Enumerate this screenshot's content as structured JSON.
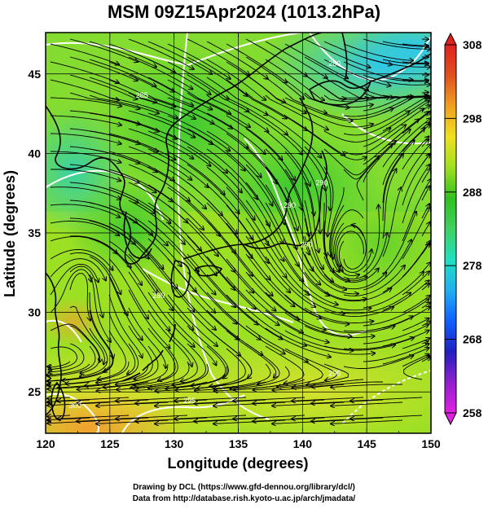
{
  "title": "MSM 09Z15Apr2024 (1013.2hPa)",
  "axes": {
    "xlabel": "Longitude (degrees)",
    "ylabel": "Latitude  (degrees)",
    "x_ticks": [
      120,
      125,
      130,
      135,
      140,
      145,
      150
    ],
    "y_ticks": [
      25,
      30,
      35,
      40,
      45
    ],
    "x_range": [
      120,
      150
    ],
    "y_range": [
      22.4,
      47.6
    ]
  },
  "colorbar": {
    "ticks": [
      258,
      268,
      278,
      288,
      298,
      308
    ],
    "range": [
      258,
      308
    ],
    "colors": [
      "#e020e0",
      "#9020d0",
      "#2020c0",
      "#1060ff",
      "#20b0f0",
      "#20e0c0",
      "#40d060",
      "#30c020",
      "#a0e020",
      "#f0e020",
      "#f0a020",
      "#e05020",
      "#e02020"
    ]
  },
  "contour_labels": [
    {
      "text": "285",
      "lon": 127.5,
      "lat": 43.5
    },
    {
      "text": "290",
      "lon": 141.5,
      "lat": 38.0
    },
    {
      "text": "290",
      "lon": 139.0,
      "lat": 36.6
    },
    {
      "text": "290",
      "lon": 140.3,
      "lat": 34.1
    },
    {
      "text": "290",
      "lon": 128.8,
      "lat": 30.9
    },
    {
      "text": "295",
      "lon": 131.2,
      "lat": 24.3
    },
    {
      "text": "295",
      "lon": 142.5,
      "lat": 26.0
    },
    {
      "text": "300",
      "lon": 122.3,
      "lat": 24.0
    },
    {
      "text": "280",
      "lon": 142.5,
      "lat": 45.5
    }
  ],
  "credits": {
    "line1": "Drawing by DCL (https://www.gfd-dennou.org/library/dcl/)",
    "line2": "Data from http://database.rish.kyoto-u.ac.jp/arch/jmadata/"
  }
}
